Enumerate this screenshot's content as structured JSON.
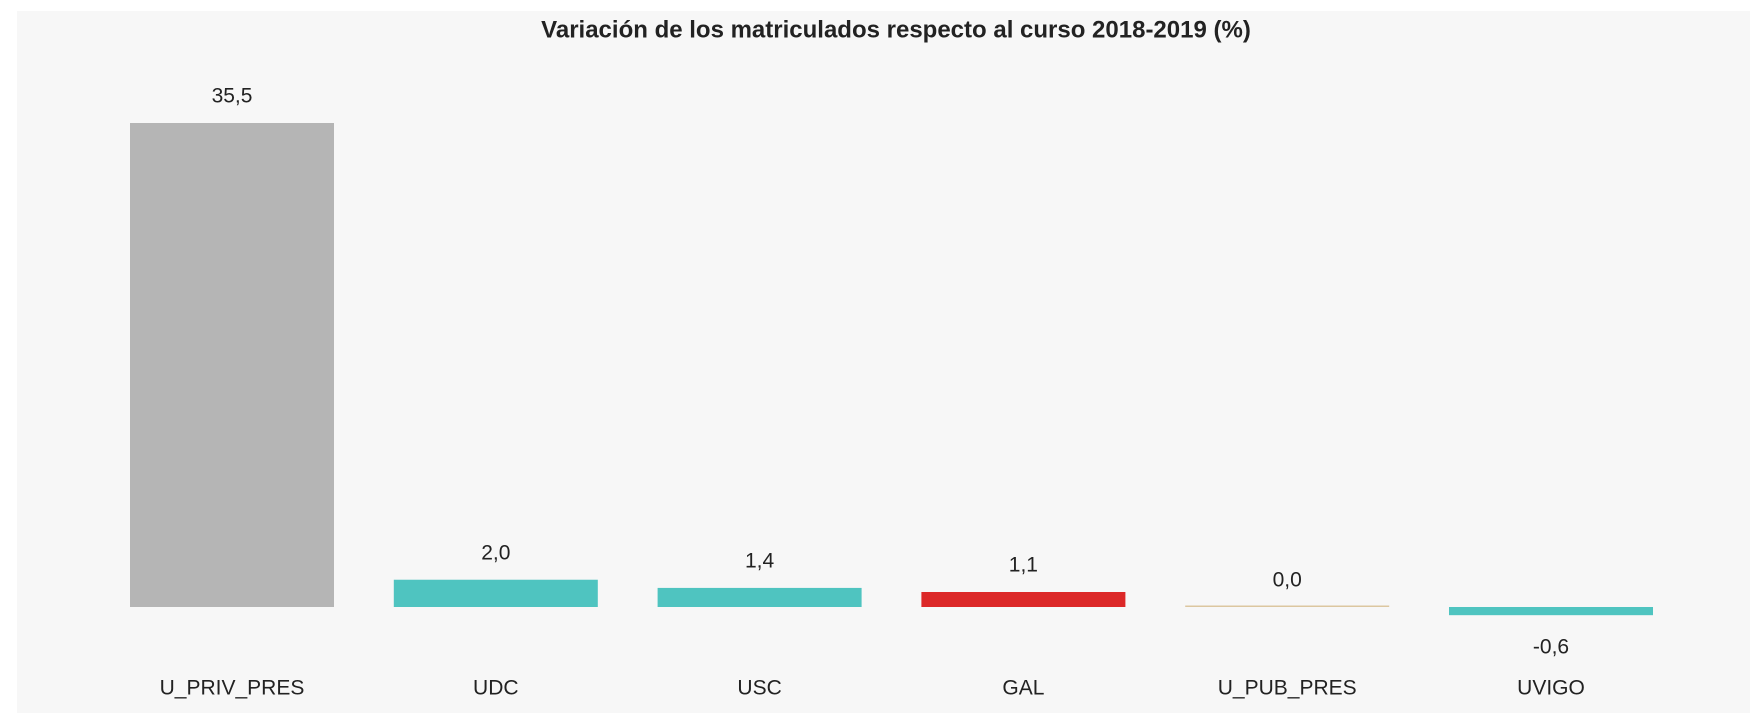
{
  "chart_data": {
    "type": "bar",
    "title": "Variación de los matriculados respecto al curso 2018-2019 (%)",
    "categories": [
      "U_PRIV_PRES",
      "UDC",
      "USC",
      "GAL",
      "U_PUB_PRES",
      "UVIGO"
    ],
    "values": [
      35.5,
      2.0,
      1.4,
      1.1,
      0.0,
      -0.6
    ],
    "value_labels": [
      "35,5",
      "2,0",
      "1,4",
      "1,1",
      "0,0",
      "-0,6"
    ],
    "colors": [
      "#b5b5b5",
      "#4fc4c0",
      "#4fc4c0",
      "#dc2828",
      "#dcc7a0",
      "#4fc4c0"
    ]
  }
}
